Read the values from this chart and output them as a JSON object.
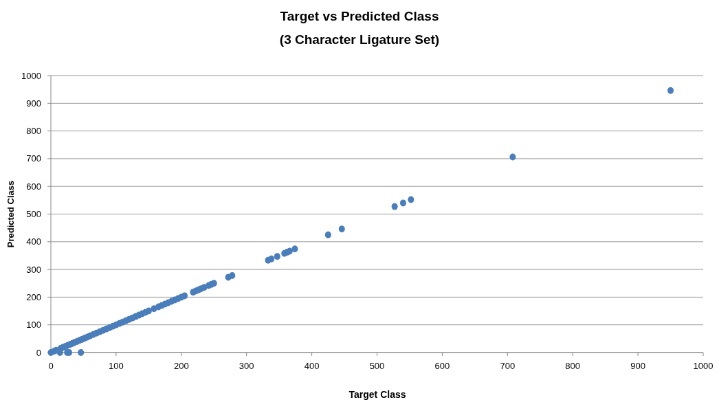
{
  "chart_data": {
    "type": "scatter",
    "title": "Target vs Predicted Class",
    "subtitle": "(3 Character Ligature Set)",
    "xlabel": "Target Class",
    "ylabel": "Predicted Class",
    "x": [
      0,
      5,
      8,
      15,
      18,
      20,
      23,
      26,
      30,
      33,
      36,
      40,
      44,
      48,
      52,
      56,
      60,
      65,
      70,
      75,
      80,
      85,
      90,
      95,
      100,
      105,
      110,
      115,
      120,
      125,
      130,
      135,
      140,
      145,
      150,
      158,
      165,
      170,
      175,
      180,
      185,
      190,
      195,
      200,
      205,
      218,
      222,
      226,
      230,
      235,
      242,
      246,
      250,
      272,
      278,
      333,
      338,
      347,
      358,
      362,
      366,
      374,
      425,
      446,
      527,
      540,
      552,
      708,
      950,
      14,
      25,
      28,
      46
    ],
    "series": [
      {
        "color": "#4a7ebb",
        "values": [
          0,
          5,
          8,
          15,
          18,
          20,
          23,
          26,
          30,
          33,
          36,
          40,
          44,
          48,
          52,
          56,
          60,
          65,
          70,
          75,
          80,
          85,
          90,
          95,
          100,
          105,
          110,
          115,
          120,
          125,
          130,
          135,
          140,
          145,
          150,
          158,
          165,
          170,
          175,
          180,
          185,
          190,
          195,
          200,
          205,
          218,
          222,
          226,
          230,
          235,
          242,
          246,
          250,
          272,
          278,
          333,
          338,
          347,
          358,
          362,
          366,
          374,
          425,
          446,
          527,
          540,
          552,
          706,
          946,
          0,
          0,
          0,
          0
        ]
      }
    ],
    "xlim": [
      0,
      1000
    ],
    "ylim": [
      0,
      1000
    ],
    "xticks": [
      0,
      100,
      200,
      300,
      400,
      500,
      600,
      700,
      800,
      900,
      1000
    ],
    "yticks": [
      0,
      100,
      200,
      300,
      400,
      500,
      600,
      700,
      800,
      900,
      1000
    ],
    "grid": "y",
    "marker": "circle"
  }
}
